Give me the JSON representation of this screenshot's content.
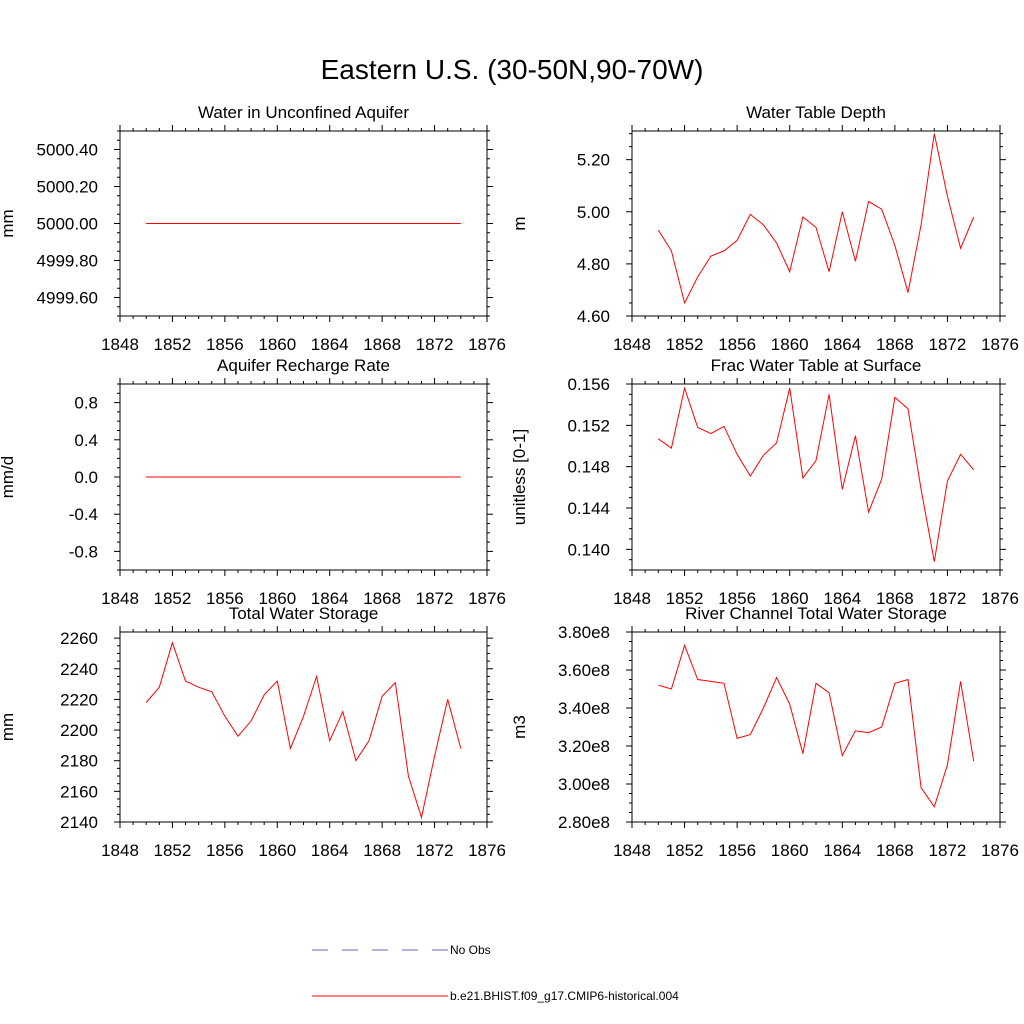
{
  "figure": {
    "title": "Eastern U.S. (30-50N,90-70W)",
    "line_color": "#ff0000",
    "obs_color": "#6a6ab4"
  },
  "legend": {
    "entries": [
      {
        "label": "No Obs",
        "style": "dashed",
        "color": "#6a6ab4"
      },
      {
        "label": "b.e21.BHIST.f09_g17.CMIP6-historical.004",
        "style": "solid",
        "color": "#ff0000"
      }
    ]
  },
  "chart_data": [
    {
      "type": "line",
      "title": "Water in Unconfined Aquifer",
      "ylabel": "mm",
      "xlim": [
        1848,
        1876
      ],
      "x_ticks": [
        1848,
        1852,
        1856,
        1860,
        1864,
        1868,
        1872,
        1876
      ],
      "ylim": [
        4999.5,
        5000.5
      ],
      "y_ticks": [
        4999.6,
        4999.8,
        5000.0,
        5000.2,
        5000.4
      ],
      "y_tick_labels": [
        "4999.60",
        "4999.80",
        "5000.00",
        "5000.20",
        "5000.40"
      ],
      "x": [
        1850,
        1851,
        1852,
        1853,
        1854,
        1855,
        1856,
        1857,
        1858,
        1859,
        1860,
        1861,
        1862,
        1863,
        1864,
        1865,
        1866,
        1867,
        1868,
        1869,
        1870,
        1871,
        1872,
        1873,
        1874
      ],
      "series": [
        {
          "values": [
            5000,
            5000,
            5000,
            5000,
            5000,
            5000,
            5000,
            5000,
            5000,
            5000,
            5000,
            5000,
            5000,
            5000,
            5000,
            5000,
            5000,
            5000,
            5000,
            5000,
            5000,
            5000,
            5000,
            5000,
            5000
          ]
        }
      ]
    },
    {
      "type": "line",
      "title": "Water Table Depth",
      "ylabel": "m",
      "xlim": [
        1848,
        1876
      ],
      "x_ticks": [
        1848,
        1852,
        1856,
        1860,
        1864,
        1868,
        1872,
        1876
      ],
      "ylim": [
        4.6,
        5.31
      ],
      "y_ticks": [
        4.6,
        4.8,
        5.0,
        5.2
      ],
      "y_tick_labels": [
        "4.60",
        "4.80",
        "5.00",
        "5.20"
      ],
      "x": [
        1850,
        1851,
        1852,
        1853,
        1854,
        1855,
        1856,
        1857,
        1858,
        1859,
        1860,
        1861,
        1862,
        1863,
        1864,
        1865,
        1866,
        1867,
        1868,
        1869,
        1870,
        1871,
        1872,
        1873,
        1874
      ],
      "series": [
        {
          "values": [
            4.93,
            4.85,
            4.65,
            4.75,
            4.83,
            4.85,
            4.89,
            4.99,
            4.95,
            4.88,
            4.77,
            4.98,
            4.94,
            4.77,
            5.0,
            4.81,
            5.04,
            5.01,
            4.87,
            4.69,
            4.95,
            5.3,
            5.06,
            4.86,
            4.98
          ]
        }
      ]
    },
    {
      "type": "line",
      "title": "Aquifer Recharge Rate",
      "ylabel": "mm/d",
      "xlim": [
        1848,
        1876
      ],
      "x_ticks": [
        1848,
        1852,
        1856,
        1860,
        1864,
        1868,
        1872,
        1876
      ],
      "ylim": [
        -1.0,
        1.0
      ],
      "y_ticks": [
        -0.8,
        -0.4,
        0.0,
        0.4,
        0.8
      ],
      "y_tick_labels": [
        "-0.8",
        "-0.4",
        "0.0",
        "0.4",
        "0.8"
      ],
      "x": [
        1850,
        1851,
        1852,
        1853,
        1854,
        1855,
        1856,
        1857,
        1858,
        1859,
        1860,
        1861,
        1862,
        1863,
        1864,
        1865,
        1866,
        1867,
        1868,
        1869,
        1870,
        1871,
        1872,
        1873,
        1874
      ],
      "series": [
        {
          "values": [
            0,
            0,
            0,
            0,
            0,
            0,
            0,
            0,
            0,
            0,
            0,
            0,
            0,
            0,
            0,
            0,
            0,
            0,
            0,
            0,
            0,
            0,
            0,
            0,
            0
          ]
        }
      ]
    },
    {
      "type": "line",
      "title": "Frac Water Table at Surface",
      "ylabel": "unitless [0-1]",
      "xlim": [
        1848,
        1876
      ],
      "x_ticks": [
        1848,
        1852,
        1856,
        1860,
        1864,
        1868,
        1872,
        1876
      ],
      "ylim": [
        0.138,
        0.156
      ],
      "y_ticks": [
        0.14,
        0.144,
        0.148,
        0.152,
        0.156
      ],
      "y_tick_labels": [
        "0.140",
        "0.144",
        "0.148",
        "0.152",
        "0.156"
      ],
      "x": [
        1850,
        1851,
        1852,
        1853,
        1854,
        1855,
        1856,
        1857,
        1858,
        1859,
        1860,
        1861,
        1862,
        1863,
        1864,
        1865,
        1866,
        1867,
        1868,
        1869,
        1870,
        1871,
        1872,
        1873,
        1874
      ],
      "series": [
        {
          "values": [
            0.1507,
            0.1498,
            0.1556,
            0.1518,
            0.1512,
            0.1519,
            0.1492,
            0.1471,
            0.1491,
            0.1503,
            0.1556,
            0.1469,
            0.1486,
            0.155,
            0.1458,
            0.151,
            0.1436,
            0.1468,
            0.1547,
            0.1536,
            0.1458,
            0.1388,
            0.1466,
            0.1492,
            0.1477
          ]
        }
      ]
    },
    {
      "type": "line",
      "title": "Total Water Storage",
      "ylabel": "mm",
      "xlim": [
        1848,
        1876
      ],
      "x_ticks": [
        1848,
        1852,
        1856,
        1860,
        1864,
        1868,
        1872,
        1876
      ],
      "ylim": [
        2140,
        2264
      ],
      "y_ticks": [
        2140,
        2160,
        2180,
        2200,
        2220,
        2240,
        2260
      ],
      "y_tick_labels": [
        "2140",
        "2160",
        "2180",
        "2200",
        "2220",
        "2240",
        "2260"
      ],
      "x": [
        1850,
        1851,
        1852,
        1853,
        1854,
        1855,
        1856,
        1857,
        1858,
        1859,
        1860,
        1861,
        1862,
        1863,
        1864,
        1865,
        1866,
        1867,
        1868,
        1869,
        1870,
        1871,
        1872,
        1873,
        1874
      ],
      "series": [
        {
          "values": [
            2218,
            2228,
            2257,
            2232,
            2228,
            2225,
            2209,
            2196,
            2206,
            2223,
            2232,
            2188,
            2209,
            2235,
            2193,
            2212,
            2180,
            2193,
            2222,
            2231,
            2170,
            2143,
            2183,
            2220,
            2188
          ]
        }
      ]
    },
    {
      "type": "line",
      "title": "River Channel Total Water Storage",
      "ylabel": "m3",
      "xlim": [
        1848,
        1876
      ],
      "x_ticks": [
        1848,
        1852,
        1856,
        1860,
        1864,
        1868,
        1872,
        1876
      ],
      "ylim": [
        280000000.0,
        380000000.0
      ],
      "y_ticks": [
        280000000.0,
        300000000.0,
        320000000.0,
        340000000.0,
        360000000.0,
        380000000.0
      ],
      "y_tick_labels": [
        "2.80e8",
        "3.00e8",
        "3.20e8",
        "3.40e8",
        "3.60e8",
        "3.80e8"
      ],
      "x": [
        1850,
        1851,
        1852,
        1853,
        1854,
        1855,
        1856,
        1857,
        1858,
        1859,
        1860,
        1861,
        1862,
        1863,
        1864,
        1865,
        1866,
        1867,
        1868,
        1869,
        1870,
        1871,
        1872,
        1873,
        1874
      ],
      "series": [
        {
          "values": [
            352000000.0,
            350000000.0,
            373000000.0,
            355000000.0,
            354000000.0,
            353000000.0,
            324000000.0,
            326000000.0,
            340000000.0,
            356000000.0,
            342000000.0,
            316000000.0,
            353000000.0,
            348000000.0,
            315000000.0,
            328000000.0,
            327000000.0,
            330000000.0,
            353000000.0,
            355000000.0,
            298000000.0,
            288000000.0,
            310000000.0,
            354000000.0,
            312000000.0
          ]
        }
      ]
    }
  ]
}
